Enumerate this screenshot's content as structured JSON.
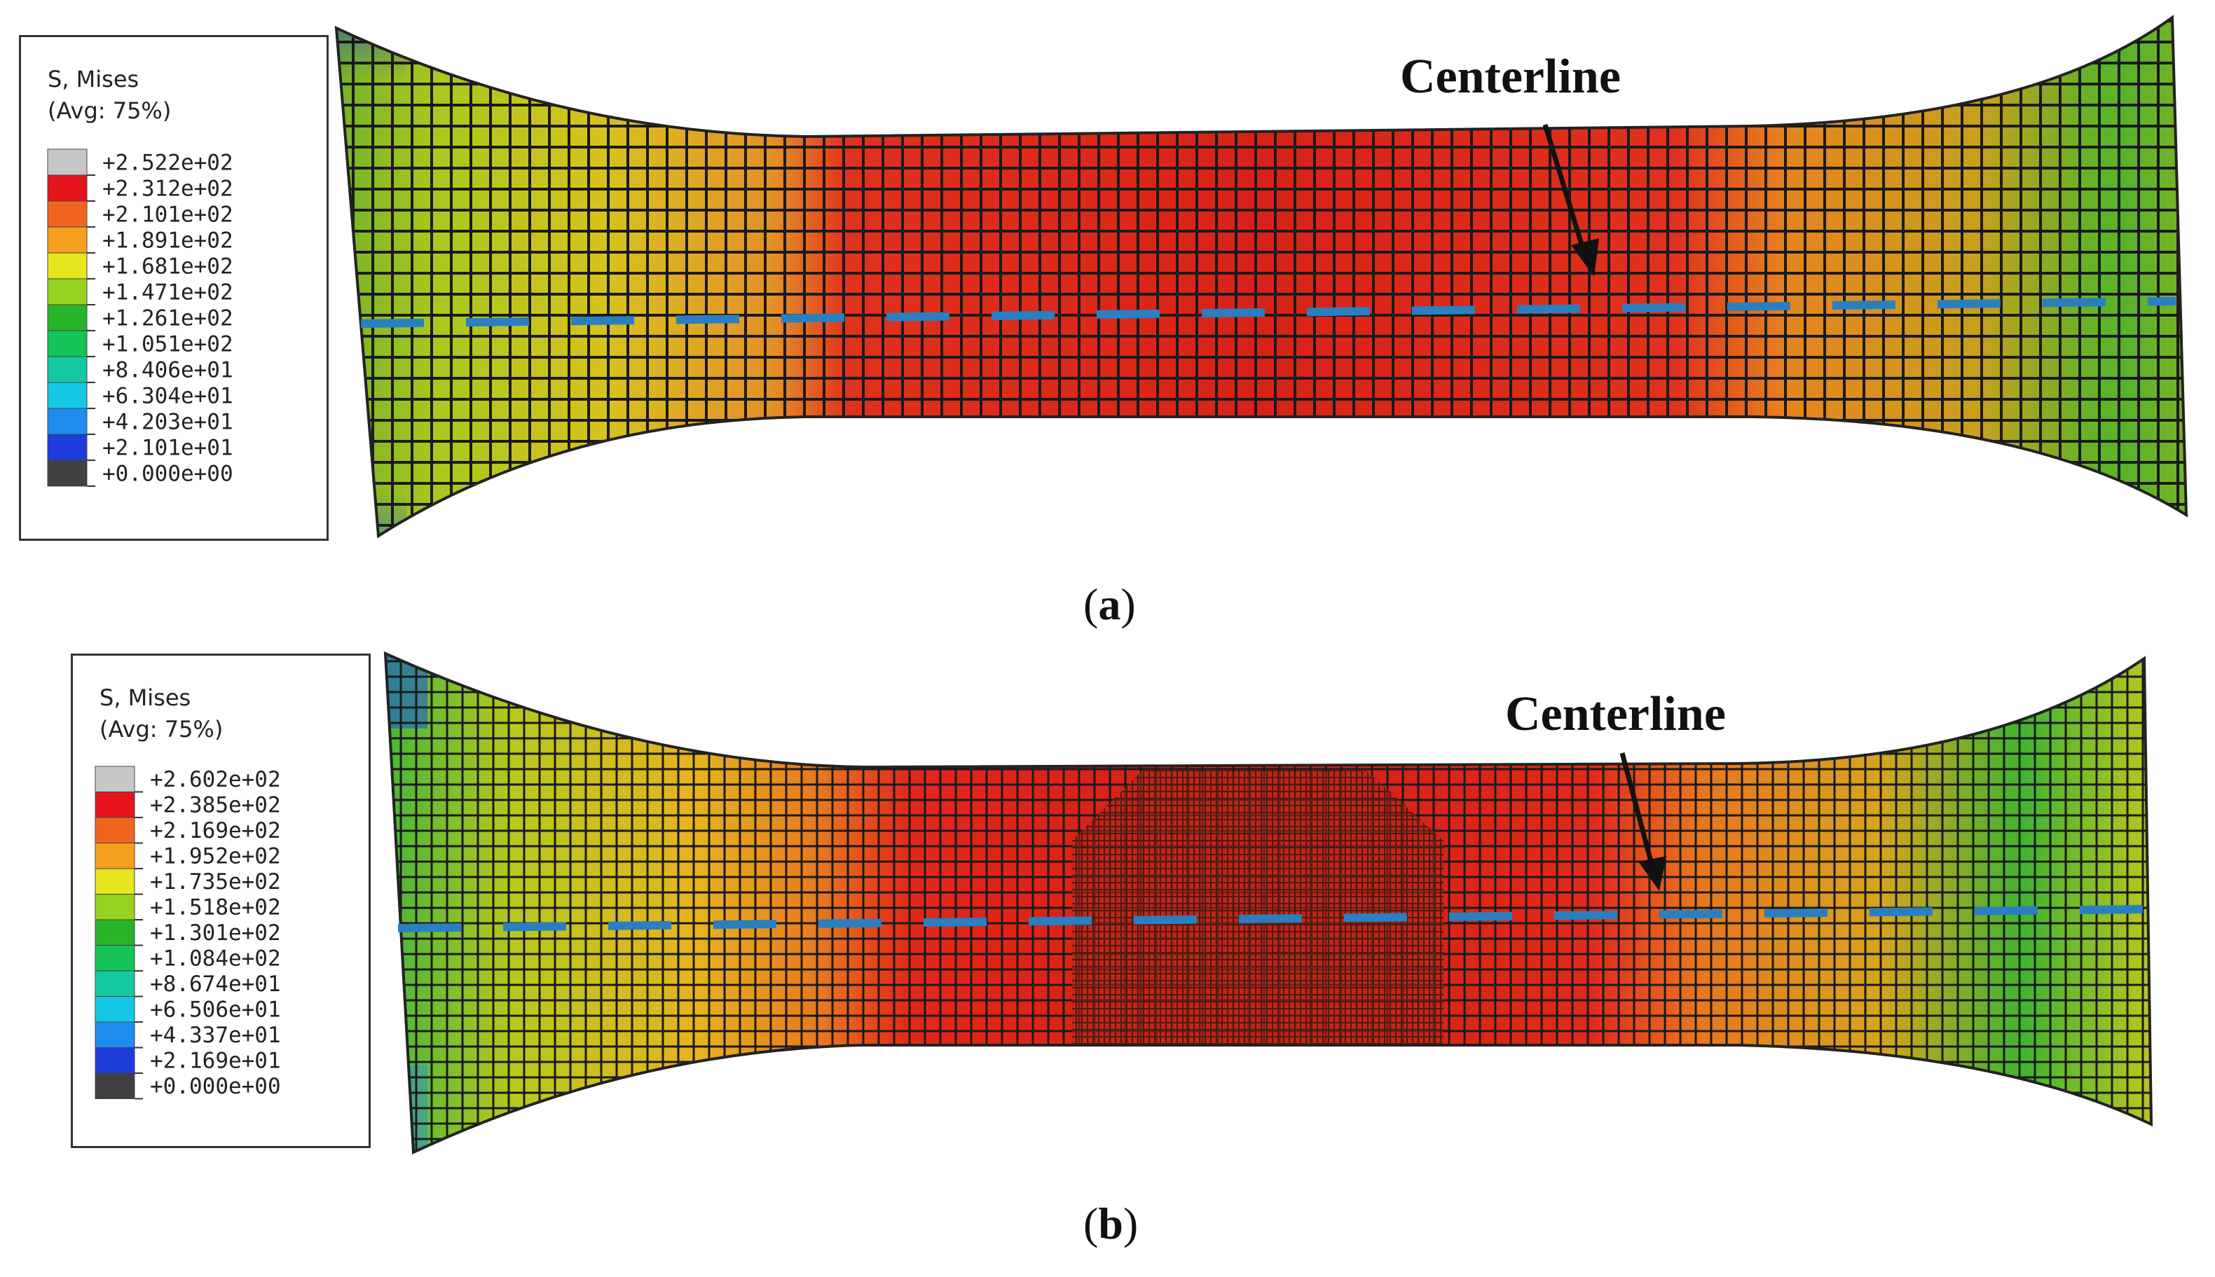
{
  "figures": [
    {
      "id": "a",
      "caption_letter": "a",
      "legend": {
        "title_line1": "S, Mises",
        "title_line2": "(Avg: 75%)",
        "values": [
          "+2.522e+02",
          "+2.312e+02",
          "+2.101e+02",
          "+1.891e+02",
          "+1.681e+02",
          "+1.471e+02",
          "+1.261e+02",
          "+1.051e+02",
          "+8.406e+01",
          "+6.304e+01",
          "+4.203e+01",
          "+2.101e+01",
          "+0.000e+00"
        ]
      },
      "centerline_label": "Centerline"
    },
    {
      "id": "b",
      "caption_letter": "b",
      "legend": {
        "title_line1": "S, Mises",
        "title_line2": "(Avg: 75%)",
        "values": [
          "+2.602e+02",
          "+2.385e+02",
          "+2.169e+02",
          "+1.952e+02",
          "+1.735e+02",
          "+1.518e+02",
          "+1.301e+02",
          "+1.084e+02",
          "+8.674e+01",
          "+6.506e+01",
          "+4.337e+01",
          "+2.169e+01",
          "+0.000e+00"
        ]
      },
      "centerline_label": "Centerline"
    }
  ],
  "colorbar_colors": [
    "#c8c8c8",
    "#e6141c",
    "#f0641e",
    "#f5a01e",
    "#e6e61e",
    "#96d21e",
    "#28b428",
    "#14c35a",
    "#14c8a0",
    "#14c8e6",
    "#1e8cf0",
    "#1e3cdc",
    "#404040"
  ],
  "centerline_color": "#2a7fc0"
}
